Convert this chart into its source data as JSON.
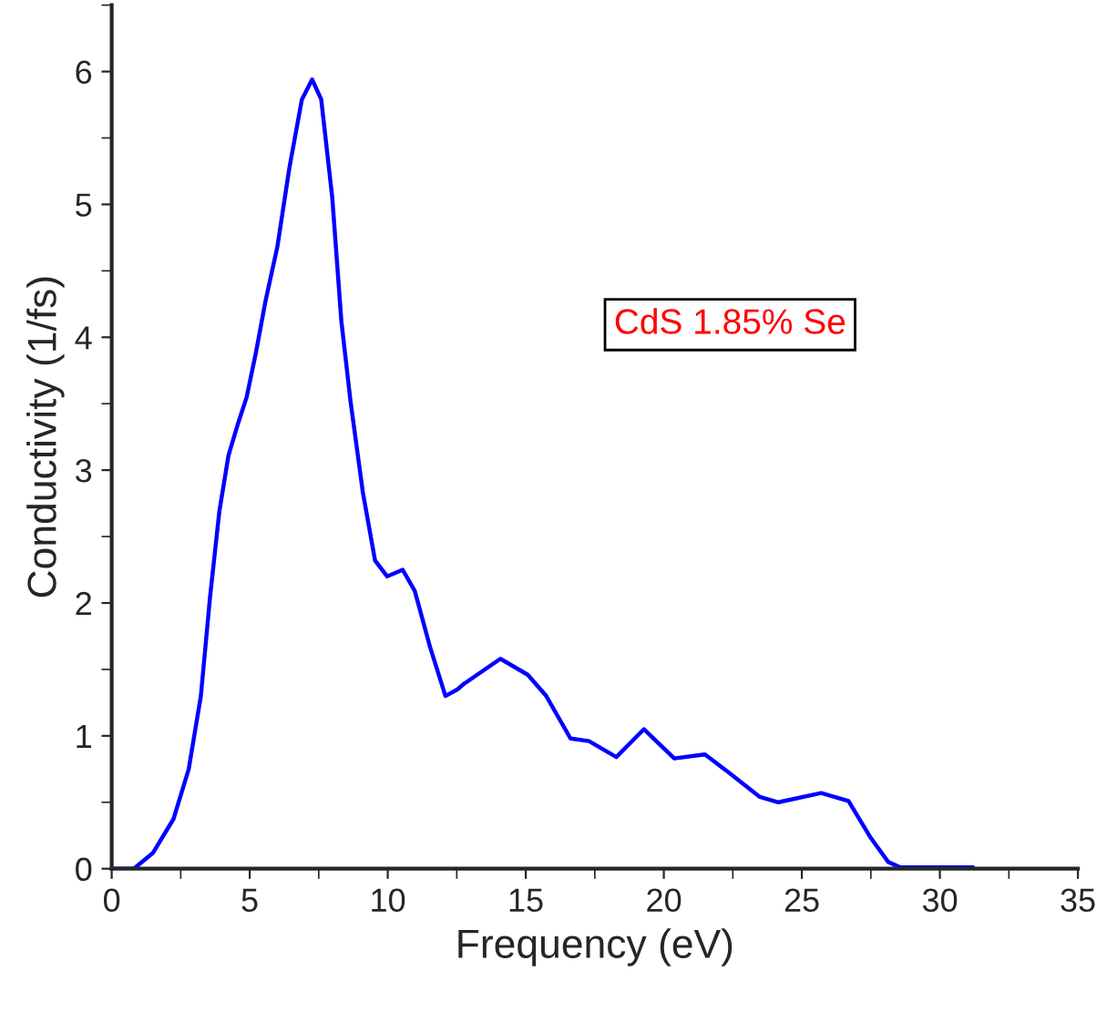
{
  "chart_data": {
    "type": "line",
    "xlabel": "Frequency (eV)",
    "ylabel": "Conductivity (1/fs)",
    "annotations": [
      "CdS 1.85% Se"
    ],
    "xlim": [
      0,
      35
    ],
    "ylim": [
      0,
      6.5
    ],
    "xticks": [
      0,
      5,
      10,
      15,
      20,
      25,
      30,
      35
    ],
    "yticks": [
      0,
      1,
      2,
      3,
      4,
      5,
      6
    ],
    "grid": false,
    "legend": false,
    "series": [
      {
        "color": "#0000ff",
        "x": [
          0,
          0.8,
          1.5,
          2.24,
          2.79,
          3.23,
          3.56,
          3.9,
          4.23,
          4.56,
          4.89,
          5.23,
          5.56,
          6.0,
          6.44,
          6.89,
          7.26,
          7.59,
          7.99,
          8.32,
          8.65,
          9.1,
          9.54,
          9.98,
          10.54,
          10.98,
          11.53,
          12.09,
          12.53,
          12.75,
          14.08,
          15.07,
          15.74,
          16.62,
          17.29,
          18.28,
          19.28,
          20.38,
          21.49,
          22.38,
          23.48,
          24.15,
          25.7,
          26.69,
          27.47,
          28.13,
          28.57,
          31.2
        ],
        "values": [
          0,
          0,
          0.12,
          0.375,
          0.75,
          1.3,
          2.04,
          2.69,
          3.11,
          3.34,
          3.55,
          3.89,
          4.26,
          4.68,
          5.28,
          5.79,
          5.94,
          5.79,
          5.05,
          4.12,
          3.52,
          2.83,
          2.32,
          2.2,
          2.25,
          2.09,
          1.67,
          1.3,
          1.35,
          1.39,
          1.58,
          1.46,
          1.3,
          0.98,
          0.96,
          0.84,
          1.05,
          0.83,
          0.86,
          0.72,
          0.54,
          0.5,
          0.57,
          0.51,
          0.24,
          0.05,
          0.01,
          0.01
        ]
      }
    ]
  }
}
